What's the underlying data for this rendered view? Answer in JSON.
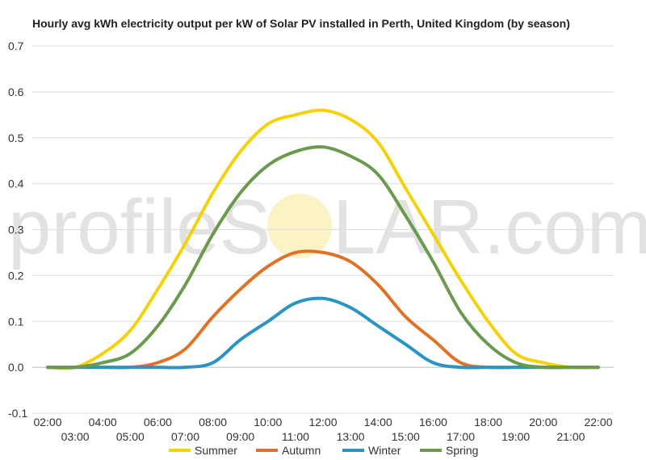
{
  "watermark": {
    "left": "profileS",
    "right": "LAR.com"
  },
  "chart_data": {
    "type": "line",
    "title": "Hourly avg kWh electricity output per kW of Solar PV installed in Perth, United Kingdom (by season)",
    "xlabel": "",
    "ylabel": "",
    "x": [
      "02:00",
      "03:00",
      "04:00",
      "05:00",
      "06:00",
      "07:00",
      "08:00",
      "09:00",
      "10:00",
      "11:00",
      "12:00",
      "13:00",
      "14:00",
      "15:00",
      "16:00",
      "17:00",
      "18:00",
      "19:00",
      "20:00",
      "21:00",
      "22:00"
    ],
    "ylim": [
      -0.1,
      0.7
    ],
    "yticks": [
      -0.1,
      0.0,
      0.1,
      0.2,
      0.3,
      0.4,
      0.5,
      0.6,
      0.7
    ],
    "ytick_labels": [
      "-0.1",
      "0.0",
      "0.1",
      "0.2",
      "0.3",
      "0.4",
      "0.5",
      "0.6",
      "0.7"
    ],
    "grid": true,
    "legend": "bottom",
    "series": [
      {
        "name": "Summer",
        "color": "#f5d10a",
        "values": [
          0.0,
          0.0,
          0.03,
          0.08,
          0.17,
          0.27,
          0.38,
          0.47,
          0.53,
          0.55,
          0.56,
          0.54,
          0.49,
          0.39,
          0.29,
          0.19,
          0.1,
          0.03,
          0.01,
          0.0,
          0.0
        ]
      },
      {
        "name": "Autumn",
        "color": "#e07228",
        "values": [
          0.0,
          0.0,
          0.0,
          0.0,
          0.01,
          0.04,
          0.11,
          0.17,
          0.22,
          0.25,
          0.25,
          0.23,
          0.18,
          0.11,
          0.06,
          0.01,
          0.0,
          0.0,
          0.0,
          0.0,
          0.0
        ]
      },
      {
        "name": "Winter",
        "color": "#2a94c4",
        "values": [
          0.0,
          0.0,
          0.0,
          0.0,
          0.0,
          0.0,
          0.01,
          0.06,
          0.1,
          0.14,
          0.15,
          0.13,
          0.09,
          0.05,
          0.01,
          0.0,
          0.0,
          0.0,
          0.0,
          0.0,
          0.0
        ]
      },
      {
        "name": "Spring",
        "color": "#6a9a4e",
        "values": [
          0.0,
          0.0,
          0.01,
          0.03,
          0.09,
          0.18,
          0.29,
          0.38,
          0.44,
          0.47,
          0.48,
          0.46,
          0.42,
          0.33,
          0.23,
          0.12,
          0.05,
          0.01,
          0.0,
          0.0,
          0.0
        ]
      }
    ]
  }
}
